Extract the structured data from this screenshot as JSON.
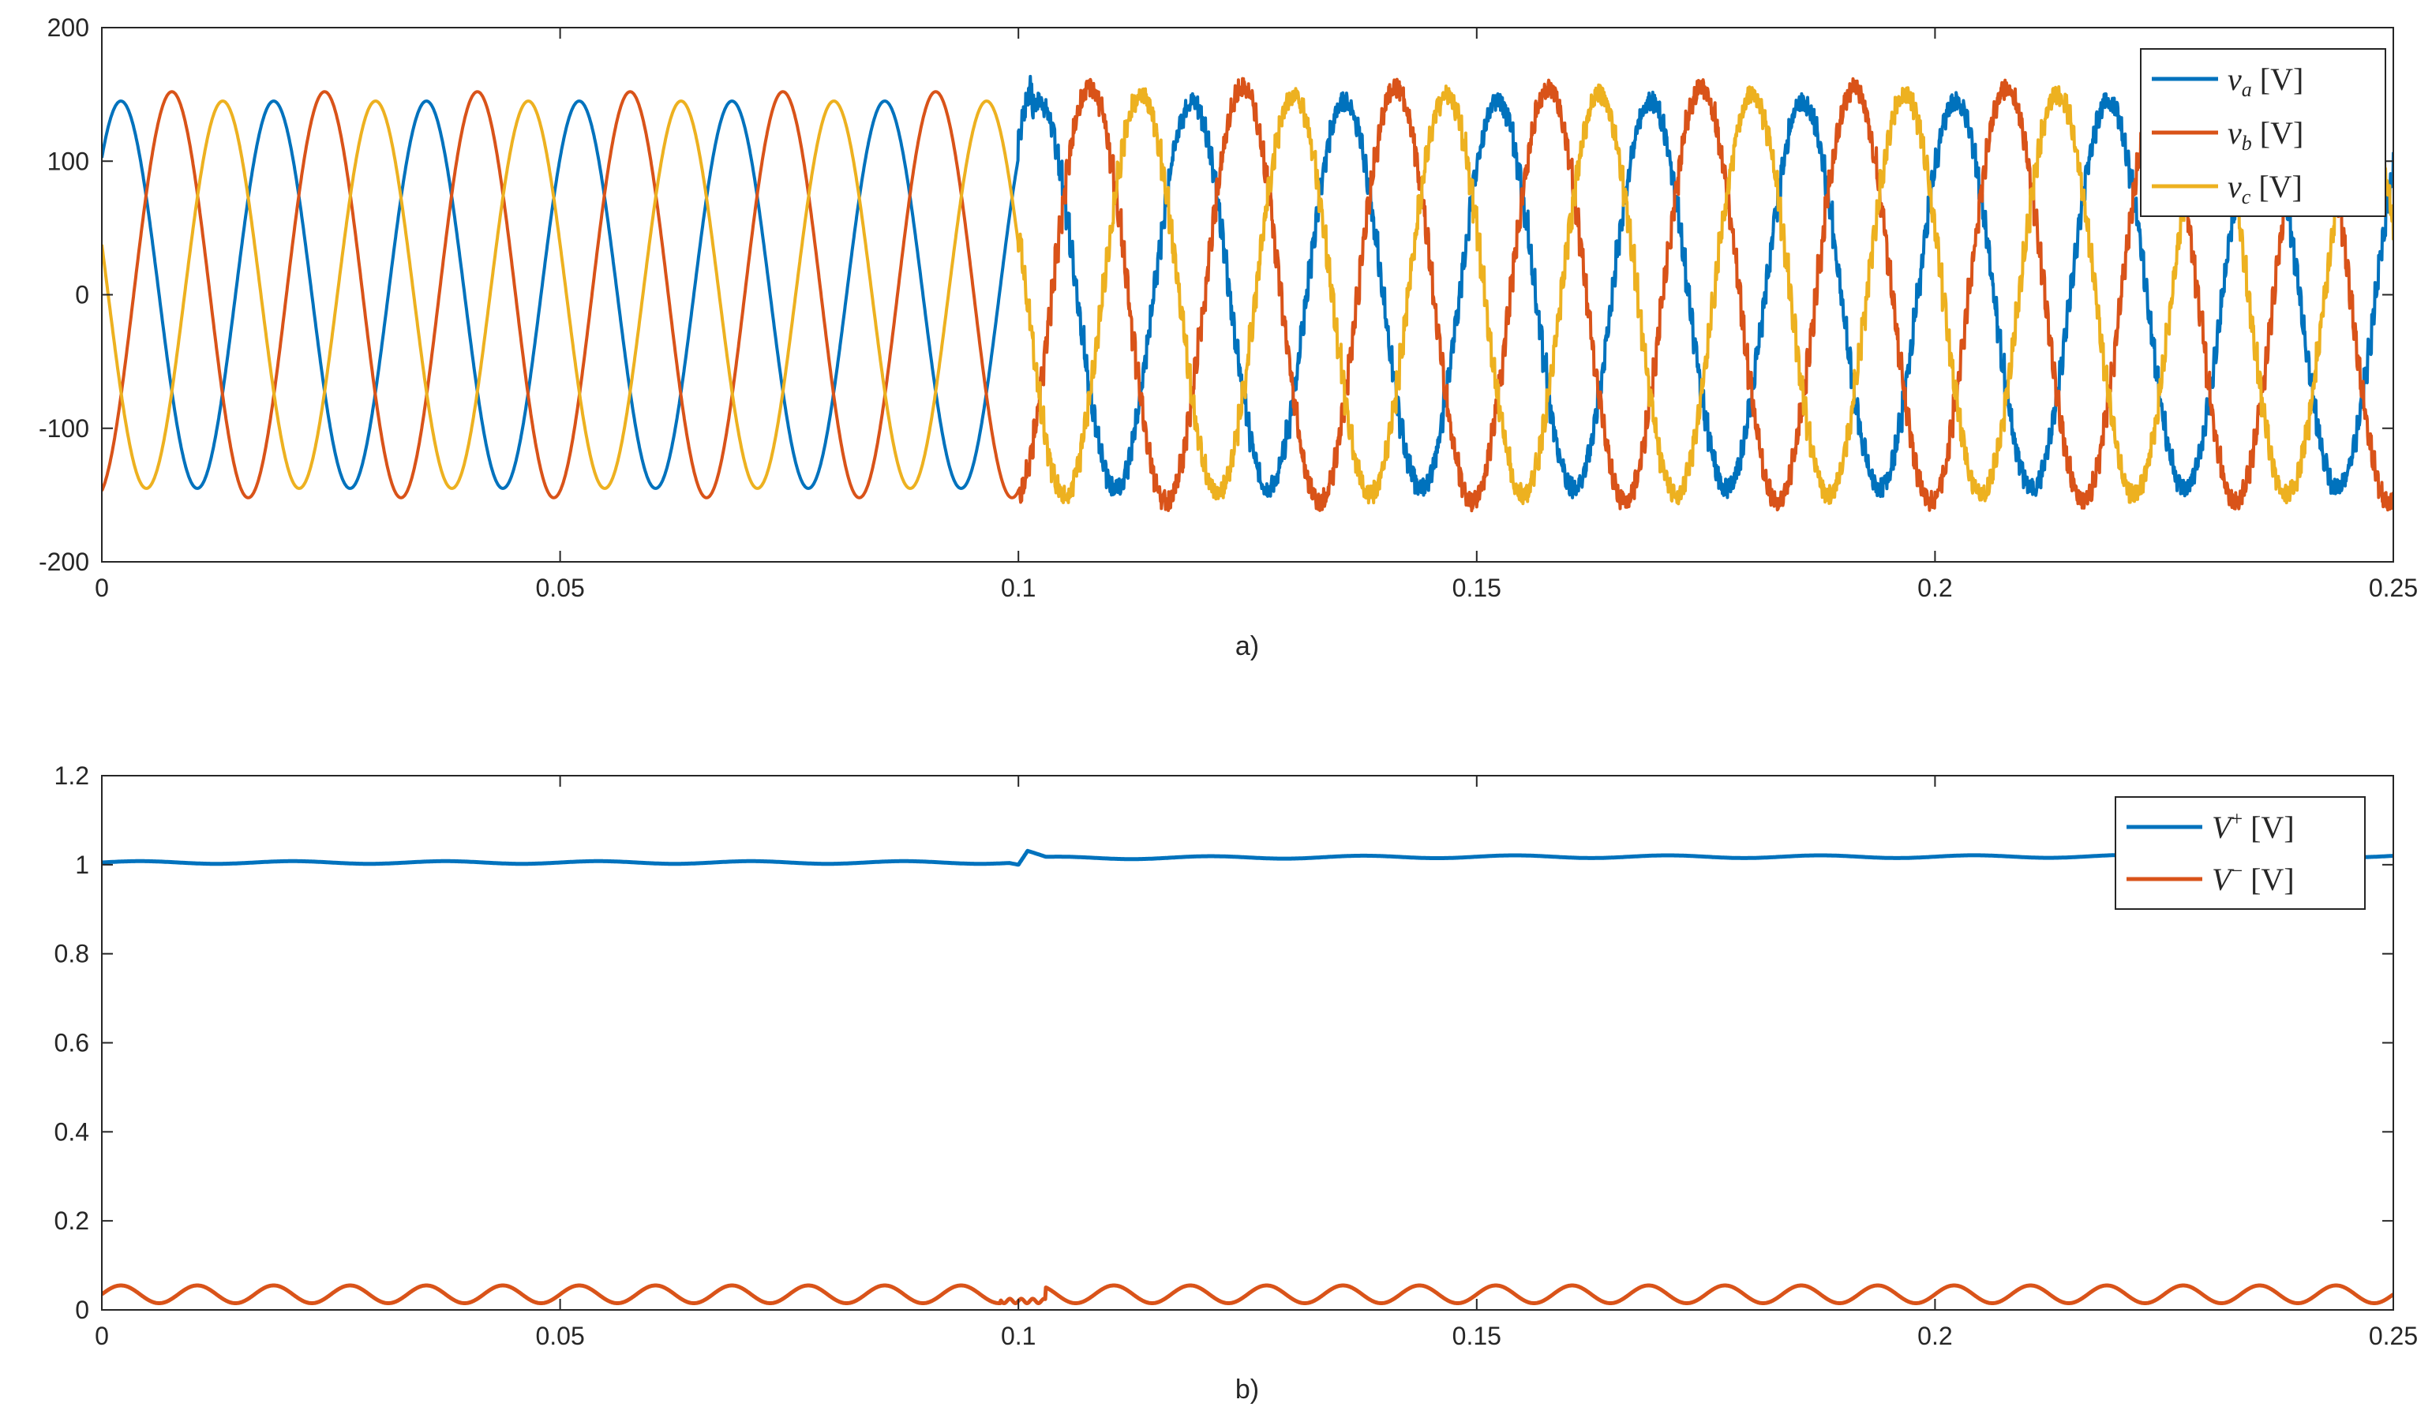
{
  "chart_data": [
    {
      "type": "line",
      "caption": "a)",
      "xlim": [
        0,
        0.25
      ],
      "ylim": [
        -200,
        200
      ],
      "xticks": [
        0,
        0.05,
        0.1,
        0.15,
        0.2,
        0.25
      ],
      "xtick_labels": [
        "0",
        "0.05",
        "0.1",
        "0.15",
        "0.2",
        "0.25"
      ],
      "yticks": [
        -200,
        -100,
        0,
        100,
        200
      ],
      "ytick_labels": [
        "-200",
        "-100",
        "0",
        "100",
        "200"
      ],
      "grid": false,
      "legend_position": "top-right",
      "frequency_hz": 60,
      "event_time": 0.1,
      "series": [
        {
          "name": "v_a [V]",
          "legend_symbol": "v",
          "legend_sub": "a",
          "legend_unit": " [V]",
          "color": "#0072BD",
          "amplitude_before": 145,
          "amplitude_after": 145,
          "phase_deg": 45,
          "segments": [
            {
              "t0": 0,
              "t1": 0.1,
              "amplitude": 145
            },
            {
              "t0": 0.1,
              "t1": 0.25,
              "amplitude": 145,
              "ripple": 8
            }
          ]
        },
        {
          "name": "v_b [V]",
          "legend_symbol": "v",
          "legend_sub": "b",
          "legend_unit": " [V]",
          "color": "#D95319",
          "amplitude_before": 152,
          "amplitude_after": 155,
          "phase_deg": -75,
          "segments": [
            {
              "t0": 0,
              "t1": 0.1,
              "amplitude": 152
            },
            {
              "t0": 0.1,
              "t1": 0.25,
              "amplitude": 155,
              "ripple": 8
            }
          ]
        },
        {
          "name": "v_c [V]",
          "legend_symbol": "v",
          "legend_sub": "c",
          "legend_unit": " [V]",
          "color": "#EDB120",
          "amplitude_before": 145,
          "amplitude_after": 150,
          "phase_deg": 165,
          "segments": [
            {
              "t0": 0,
              "t1": 0.1,
              "amplitude": 145
            },
            {
              "t0": 0.1,
              "t1": 0.25,
              "amplitude": 150,
              "ripple": 8
            }
          ]
        }
      ]
    },
    {
      "type": "line",
      "caption": "b)",
      "xlim": [
        0,
        0.25
      ],
      "ylim": [
        0,
        1.2
      ],
      "xticks": [
        0,
        0.05,
        0.1,
        0.15,
        0.2,
        0.25
      ],
      "xtick_labels": [
        "0",
        "0.05",
        "0.1",
        "0.15",
        "0.2",
        "0.25"
      ],
      "yticks": [
        0,
        0.2,
        0.4,
        0.6,
        0.8,
        1,
        1.2
      ],
      "ytick_labels": [
        "0",
        "0.2",
        "0.4",
        "0.6",
        "0.8",
        "1",
        "1.2"
      ],
      "grid": false,
      "legend_position": "top-right",
      "series": [
        {
          "name": "V+ [V]",
          "legend_symbol": "V",
          "legend_sup": "+",
          "legend_unit": " [V]",
          "color": "#0072BD",
          "x": [
            0,
            0.05,
            0.099,
            0.1,
            0.101,
            0.103,
            0.15,
            0.2,
            0.25
          ],
          "y": [
            1.005,
            1.005,
            1.005,
            1.0,
            1.03,
            1.015,
            1.018,
            1.018,
            1.02
          ]
        },
        {
          "name": "V- [V]",
          "legend_symbol": "V",
          "legend_sup": "−",
          "legend_unit": " [V]",
          "color": "#D95319",
          "x": [
            0,
            0.25
          ],
          "mean": 0.035,
          "ripple_amplitude": 0.02,
          "min": 0.015,
          "max": 0.055
        }
      ]
    }
  ]
}
